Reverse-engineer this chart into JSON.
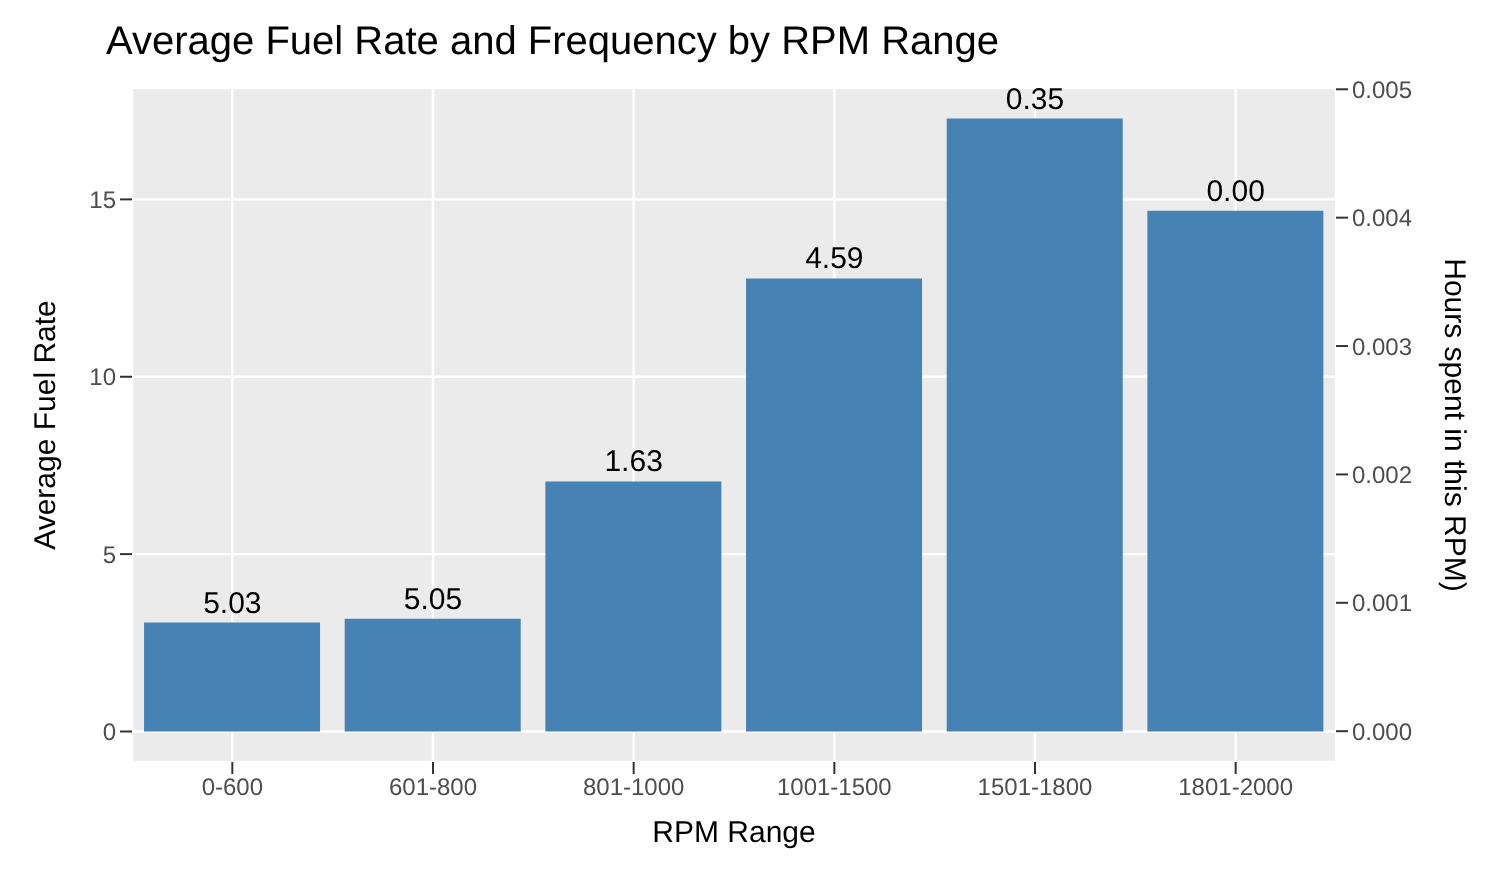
{
  "chart_data": {
    "type": "bar",
    "title": "Average Fuel Rate and Frequency by RPM Range",
    "xlabel": "RPM Range",
    "ylabel": "Average Fuel Rate",
    "y2label": "Hours spent in this RPM)",
    "categories": [
      "0-600",
      "601-800",
      "801-1000",
      "1001-1500",
      "1501-1800",
      "1801-2000"
    ],
    "values": [
      3.07,
      3.18,
      7.05,
      12.77,
      17.28,
      14.68
    ],
    "annotations": [
      {
        "text": "5.03",
        "x": "0-600",
        "y": 3.07
      },
      {
        "text": "5.05",
        "x": "601-800",
        "y": 3.18
      },
      {
        "text": "1.63",
        "x": "801-1000",
        "y": 7.05
      },
      {
        "text": "4.59",
        "x": "1001-1500",
        "y": 12.77
      },
      {
        "text": "0.35",
        "x": "1501-1800",
        "y": 17.28
      },
      {
        "text": "0.00",
        "x": "1801-2000",
        "y": 14.68
      }
    ],
    "color": "#4682b4",
    "ylim": [
      -0.86,
      18.14
    ],
    "yticks": [
      0,
      5,
      10,
      15
    ],
    "y2lim": [
      -0.00024,
      0.00501
    ],
    "y2ticks": [
      {
        "value": 0,
        "label": "0.000"
      },
      {
        "value": 0.001,
        "label": "0.001"
      },
      {
        "value": 0.002,
        "label": "0.002"
      },
      {
        "value": 0.003,
        "label": "0.003"
      },
      {
        "value": 0.004,
        "label": "0.004"
      },
      {
        "value": 0.005,
        "label": "0.005"
      }
    ],
    "grid": true
  }
}
